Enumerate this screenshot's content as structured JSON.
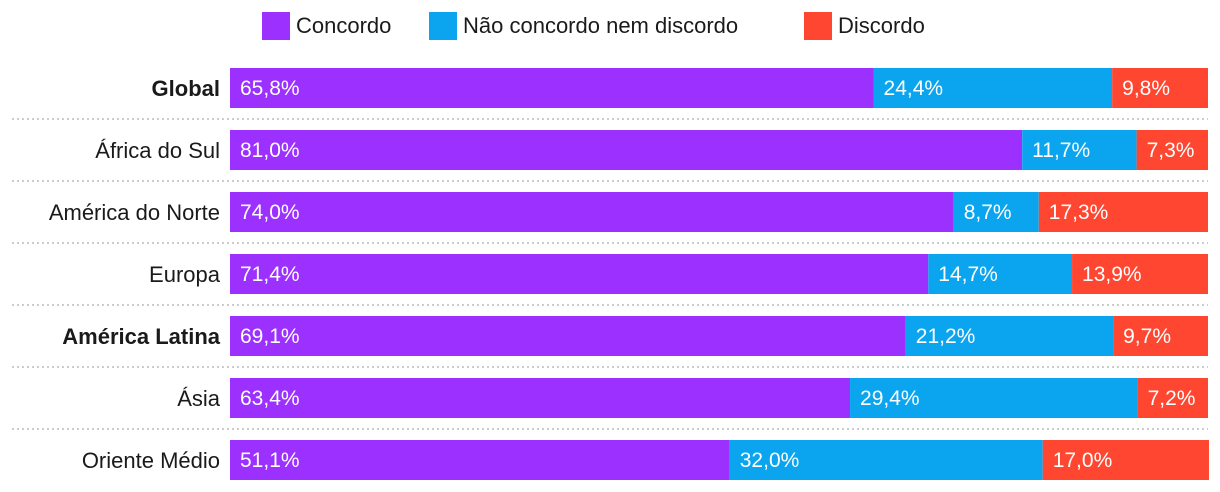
{
  "chart_data": {
    "type": "bar",
    "orientation": "horizontal",
    "stacked": true,
    "title": "",
    "xlabel": "",
    "ylabel": "",
    "xlim": [
      0,
      100
    ],
    "legend_position": "top-center",
    "grid": false,
    "categories": [
      "Global",
      "África do Sul",
      "América do Norte",
      "Europa",
      "América Latina",
      "Ásia",
      "Oriente Médio"
    ],
    "bold_categories": [
      "Global",
      "América Latina"
    ],
    "series": [
      {
        "name": "Concordo",
        "color": "#9b30ff",
        "values": [
          65.8,
          81.0,
          74.0,
          71.4,
          69.1,
          63.4,
          51.1
        ],
        "labels": [
          "65,8%",
          "81,0%",
          "74,0%",
          "71,4%",
          "69,1%",
          "63,4%",
          "51,1%"
        ]
      },
      {
        "name": "Não concordo nem discordo",
        "color": "#0aa5ee",
        "values": [
          24.4,
          11.7,
          8.7,
          14.7,
          21.2,
          29.4,
          32.0
        ],
        "labels": [
          "24,4%",
          "11,7%",
          "8,7%",
          "14,7%",
          "21,2%",
          "29,4%",
          "32,0%"
        ]
      },
      {
        "name": "Discordo",
        "color": "#ff4630",
        "values": [
          9.8,
          7.3,
          17.3,
          13.9,
          9.7,
          7.2,
          17.0
        ],
        "labels": [
          "9,8%",
          "7,3%",
          "17,3%",
          "13,9%",
          "9,7%",
          "7,2%",
          "17,0%"
        ]
      }
    ]
  }
}
